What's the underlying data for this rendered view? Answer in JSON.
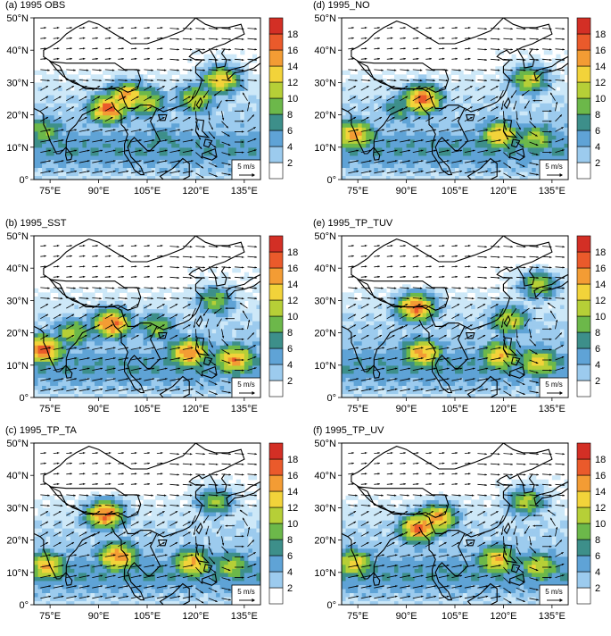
{
  "colors": {
    "levels": [
      "#ffffff",
      "#cde8f8",
      "#9ccbee",
      "#5fa3d6",
      "#3d8f8a",
      "#6cb84a",
      "#b6cf37",
      "#f2d33a",
      "#f39c34",
      "#ea5a2b",
      "#d32f25",
      "#9c1b1c"
    ],
    "land_outline": "#000000",
    "vector": "#000000"
  },
  "chart_data": [
    {
      "type": "heatmap",
      "title": "(a) 1995 OBS",
      "x_ticks": [
        "75°E",
        "90°E",
        "105°E",
        "120°E",
        "135°E"
      ],
      "y_ticks": [
        "0°",
        "10°N",
        "20°N",
        "30°N",
        "40°N",
        "50°N"
      ],
      "xlim": [
        70,
        140
      ],
      "ylim": [
        0,
        50
      ],
      "colorbar_ticks": [
        2,
        4,
        6,
        8,
        10,
        12,
        14,
        16,
        18
      ],
      "vector_reference": "5 m/s",
      "hotspots": [
        {
          "lon": 93,
          "lat": 22,
          "value": 19
        },
        {
          "lon": 99,
          "lat": 26,
          "value": 17
        },
        {
          "lon": 105,
          "lat": 24,
          "value": 14
        },
        {
          "lon": 120,
          "lat": 25,
          "value": 14
        },
        {
          "lon": 128,
          "lat": 31,
          "value": 16
        },
        {
          "lon": 73,
          "lat": 15,
          "value": 12
        },
        {
          "lon": 110,
          "lat": 13,
          "value": 9
        }
      ]
    },
    {
      "type": "heatmap",
      "title": "(d) 1995_NO",
      "x_ticks": [
        "75°E",
        "90°E",
        "105°E",
        "120°E",
        "135°E"
      ],
      "y_ticks": [
        "0°",
        "10°N",
        "20°N",
        "30°N",
        "40°N",
        "50°N"
      ],
      "xlim": [
        70,
        140
      ],
      "ylim": [
        0,
        50
      ],
      "colorbar_ticks": [
        2,
        4,
        6,
        8,
        10,
        12,
        14,
        16,
        18
      ],
      "vector_reference": "5 m/s",
      "hotspots": [
        {
          "lon": 95,
          "lat": 25,
          "value": 19
        },
        {
          "lon": 74,
          "lat": 14,
          "value": 17
        },
        {
          "lon": 119,
          "lat": 14,
          "value": 16
        },
        {
          "lon": 130,
          "lat": 13,
          "value": 13
        },
        {
          "lon": 128,
          "lat": 31,
          "value": 14
        },
        {
          "lon": 88,
          "lat": 22,
          "value": 10
        }
      ]
    },
    {
      "type": "heatmap",
      "title": "(b) 1995_SST",
      "x_ticks": [
        "75°E",
        "90°E",
        "105°E",
        "120°E",
        "135°E"
      ],
      "y_ticks": [
        "0°",
        "10°N",
        "20°N",
        "30°N",
        "40°N",
        "50°N"
      ],
      "xlim": [
        70,
        140
      ],
      "ylim": [
        0,
        50
      ],
      "colorbar_ticks": [
        2,
        4,
        6,
        8,
        10,
        12,
        14,
        16,
        18
      ],
      "vector_reference": "5 m/s",
      "hotspots": [
        {
          "lon": 94,
          "lat": 23,
          "value": 19
        },
        {
          "lon": 73,
          "lat": 15,
          "value": 19
        },
        {
          "lon": 118,
          "lat": 14,
          "value": 18
        },
        {
          "lon": 132,
          "lat": 12,
          "value": 17
        },
        {
          "lon": 82,
          "lat": 20,
          "value": 13
        },
        {
          "lon": 108,
          "lat": 22,
          "value": 12
        },
        {
          "lon": 126,
          "lat": 30,
          "value": 12
        }
      ]
    },
    {
      "type": "heatmap",
      "title": "(e) 1995_TP_TUV",
      "x_ticks": [
        "75°E",
        "90°E",
        "105°E",
        "120°E",
        "135°E"
      ],
      "y_ticks": [
        "0°",
        "10°N",
        "20°N",
        "30°N",
        "40°N",
        "50°N"
      ],
      "xlim": [
        70,
        140
      ],
      "ylim": [
        0,
        50
      ],
      "colorbar_ticks": [
        2,
        4,
        6,
        8,
        10,
        12,
        14,
        16,
        18
      ],
      "vector_reference": "5 m/s",
      "hotspots": [
        {
          "lon": 93,
          "lat": 28,
          "value": 19
        },
        {
          "lon": 95,
          "lat": 14,
          "value": 17
        },
        {
          "lon": 119,
          "lat": 13,
          "value": 16
        },
        {
          "lon": 131,
          "lat": 11,
          "value": 15
        },
        {
          "lon": 122,
          "lat": 24,
          "value": 14
        },
        {
          "lon": 131,
          "lat": 35,
          "value": 13
        }
      ]
    },
    {
      "type": "heatmap",
      "title": "(c) 1995_TP_TA",
      "x_ticks": [
        "75°E",
        "90°E",
        "105°E",
        "120°E",
        "135°E"
      ],
      "y_ticks": [
        "0°",
        "10°N",
        "20°N",
        "30°N",
        "40°N",
        "50°N"
      ],
      "xlim": [
        70,
        140
      ],
      "ylim": [
        0,
        50
      ],
      "colorbar_ticks": [
        2,
        4,
        6,
        8,
        10,
        12,
        14,
        16,
        18
      ],
      "vector_reference": "5 m/s",
      "hotspots": [
        {
          "lon": 92,
          "lat": 28,
          "value": 19
        },
        {
          "lon": 96,
          "lat": 15,
          "value": 18
        },
        {
          "lon": 74,
          "lat": 12,
          "value": 16
        },
        {
          "lon": 119,
          "lat": 13,
          "value": 16
        },
        {
          "lon": 131,
          "lat": 12,
          "value": 13
        },
        {
          "lon": 126,
          "lat": 32,
          "value": 12
        }
      ]
    },
    {
      "type": "heatmap",
      "title": "(f) 1995_TP_UV",
      "x_ticks": [
        "75°E",
        "90°E",
        "105°E",
        "120°E",
        "135°E"
      ],
      "y_ticks": [
        "0°",
        "10°N",
        "20°N",
        "30°N",
        "40°N",
        "50°N"
      ],
      "xlim": [
        70,
        140
      ],
      "ylim": [
        0,
        50
      ],
      "colorbar_ticks": [
        2,
        4,
        6,
        8,
        10,
        12,
        14,
        16,
        18
      ],
      "vector_reference": "5 m/s",
      "hotspots": [
        {
          "lon": 94,
          "lat": 24,
          "value": 19
        },
        {
          "lon": 100,
          "lat": 27,
          "value": 17
        },
        {
          "lon": 74,
          "lat": 13,
          "value": 15
        },
        {
          "lon": 118,
          "lat": 14,
          "value": 16
        },
        {
          "lon": 131,
          "lat": 12,
          "value": 14
        },
        {
          "lon": 127,
          "lat": 32,
          "value": 13
        }
      ]
    }
  ]
}
